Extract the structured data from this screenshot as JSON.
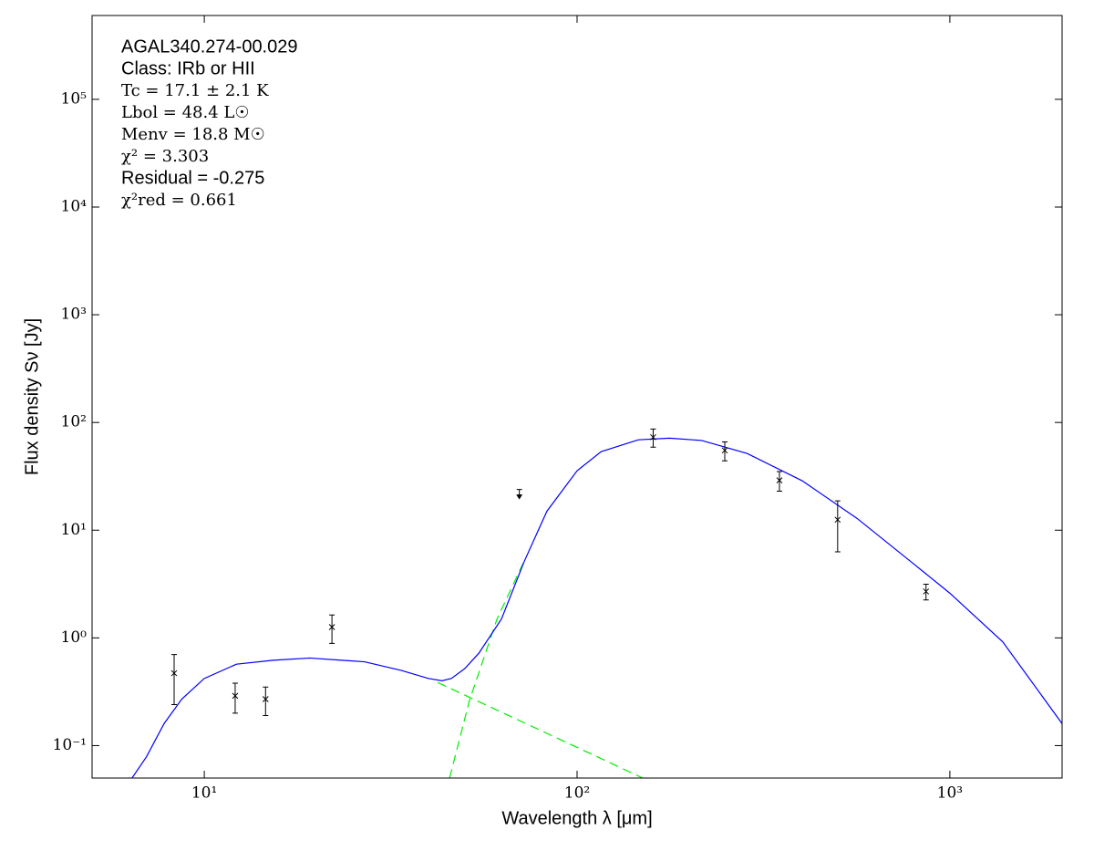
{
  "chart_data": {
    "type": "line",
    "annotations": [
      "AGAL340.274-00.029",
      "Class: IRb or HII",
      "Tc = 17.1 ± 2.1 K",
      "Lbol = 48.4 L☉",
      "Menv = 18.8 M☉",
      "χ² = 3.303",
      "Residual = -0.275",
      "χ²red = 0.661"
    ],
    "xlabel": "Wavelength λ [μm]",
    "ylabel": "Flux density Sν [Jy]",
    "xscale": "log",
    "yscale": "log",
    "xlim": [
      5,
      2000
    ],
    "ylim": [
      0.05,
      600000
    ],
    "xticks": [
      {
        "value": 10,
        "label": "10¹"
      },
      {
        "value": 100,
        "label": "10²"
      },
      {
        "value": 1000,
        "label": "10³"
      }
    ],
    "yticks": [
      {
        "value": 0.1,
        "label": "10⁻¹"
      },
      {
        "value": 1,
        "label": "10⁰"
      },
      {
        "value": 10,
        "label": "10¹"
      },
      {
        "value": 100,
        "label": "10²"
      },
      {
        "value": 1000,
        "label": "10³"
      },
      {
        "value": 10000,
        "label": "10⁴"
      },
      {
        "value": 100000,
        "label": "10⁵"
      }
    ],
    "series": [
      {
        "color": "#00ee00",
        "style": "dashed",
        "x": [
          42.3,
          83,
          150
        ],
        "values": [
          0.385,
          0.13,
          0.05
        ]
      },
      {
        "color": "#00ee00",
        "style": "dashed",
        "x": [
          45.5,
          51.4,
          61,
          72
        ],
        "values": [
          0.05,
          0.26,
          1.5,
          5.1
        ]
      },
      {
        "color": "#0000ff",
        "style": "solid",
        "x": [
          6.4,
          7.0,
          7.8,
          8.7,
          10,
          12.2,
          15.3,
          19.2,
          26.9,
          33.7,
          39.9,
          43.4,
          46,
          50,
          54.5,
          62.7,
          72.1,
          83,
          100,
          116,
          146,
          177,
          216,
          286,
          402,
          563,
          789,
          1000,
          1386,
          2000
        ],
        "values": [
          0.05,
          0.079,
          0.16,
          0.27,
          0.42,
          0.57,
          0.62,
          0.65,
          0.6,
          0.5,
          0.42,
          0.4,
          0.42,
          0.52,
          0.72,
          1.5,
          5.1,
          15,
          35.6,
          53.6,
          69,
          71.5,
          68,
          51.5,
          28.7,
          12.9,
          5.05,
          2.6,
          0.92,
          0.16
        ]
      }
    ],
    "points": {
      "color": "#000000",
      "x": [
        8.3,
        12.1,
        14.6,
        22,
        160,
        249,
        349,
        500,
        863
      ],
      "values": [
        0.47,
        0.29,
        0.27,
        1.26,
        73,
        55,
        29,
        12.5,
        2.7
      ],
      "errors": [
        0.23,
        0.09,
        0.08,
        0.37,
        14,
        11,
        6,
        6.2,
        0.45
      ]
    },
    "upper_limits": {
      "color": "#000000",
      "x": [
        70
      ],
      "values": [
        22.5
      ]
    }
  }
}
